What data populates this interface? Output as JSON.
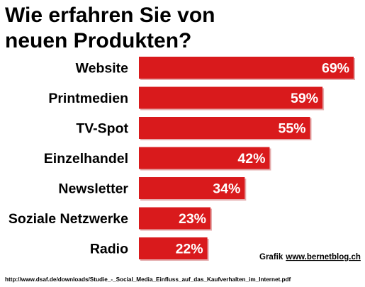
{
  "colors": {
    "bar": "#d91a1c",
    "bar_shadow": "#b31214",
    "text": "#000000",
    "value_text": "#ffffff"
  },
  "chart_data": {
    "type": "bar",
    "orientation": "horizontal",
    "title": [
      "Wie erfahren Sie von",
      "neuen Produkten?"
    ],
    "categories": [
      "Website",
      "Printmedien",
      "TV-Spot",
      "Einzelhandel",
      "Newsletter",
      "Soziale Netzwerke",
      "Radio"
    ],
    "values": [
      69,
      59,
      55,
      42,
      34,
      23,
      22
    ],
    "value_labels": [
      "69%",
      "59%",
      "55%",
      "42%",
      "34%",
      "23%",
      "22%"
    ],
    "unit": "%",
    "xlim": [
      0,
      69
    ],
    "grid": false,
    "legend": "none"
  },
  "credit": {
    "prefix": "Grafik",
    "link": "www.bernetblog.ch"
  },
  "source": "http://www.dsaf.de/downloads/Studie_-_Social_Media_Einfluss_auf_das_Kaufverhalten_im_Internet.pdf"
}
